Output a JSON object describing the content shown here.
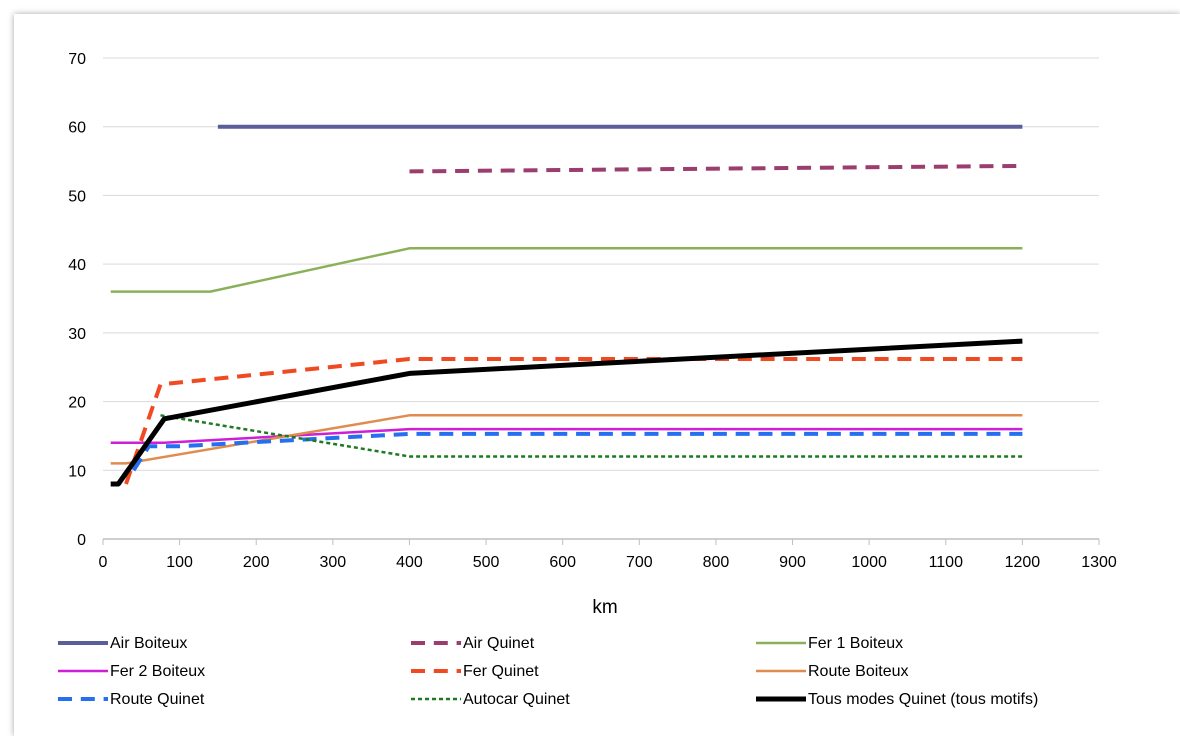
{
  "chart_data": {
    "type": "line",
    "title": "",
    "xlabel": "km",
    "ylabel": "",
    "xlim": [
      0,
      1300
    ],
    "ylim": [
      0,
      70
    ],
    "xticks": [
      0,
      100,
      200,
      300,
      400,
      500,
      600,
      700,
      800,
      900,
      1000,
      1100,
      1200,
      1300
    ],
    "yticks": [
      0,
      10,
      20,
      30,
      40,
      50,
      60,
      70
    ],
    "grid": "horizontal",
    "legend_position": "bottom",
    "series": [
      {
        "name": "Air Boiteux",
        "color": "#5a5f9a",
        "style": "solid",
        "width": 4,
        "points": [
          [
            150,
            60
          ],
          [
            1200,
            60
          ]
        ]
      },
      {
        "name": "Air Quinet",
        "color": "#9b3d6e",
        "style": "dash",
        "width": 4,
        "points": [
          [
            400,
            53.5
          ],
          [
            1200,
            54.3
          ]
        ]
      },
      {
        "name": "Fer 1  Boiteux",
        "color": "#8bb05a",
        "style": "solid",
        "width": 2.5,
        "points": [
          [
            10,
            36
          ],
          [
            140,
            36
          ],
          [
            400,
            42.3
          ],
          [
            1200,
            42.3
          ]
        ]
      },
      {
        "name": "Fer 2 Boiteux",
        "color": "#cc1fd6",
        "style": "solid",
        "width": 2.5,
        "points": [
          [
            10,
            14
          ],
          [
            80,
            14
          ],
          [
            400,
            16
          ],
          [
            1200,
            16
          ]
        ]
      },
      {
        "name": "Fer Quinet",
        "color": "#f04a22",
        "style": "dash",
        "width": 4,
        "points": [
          [
            30,
            8
          ],
          [
            75,
            22.5
          ],
          [
            400,
            26.2
          ],
          [
            1200,
            26.2
          ]
        ]
      },
      {
        "name": "Route Boiteux",
        "color": "#e08c4e",
        "style": "solid",
        "width": 2.5,
        "points": [
          [
            10,
            11
          ],
          [
            30,
            11
          ],
          [
            400,
            18
          ],
          [
            1200,
            18
          ]
        ]
      },
      {
        "name": "Route Quinet",
        "color": "#2670f0",
        "style": "dash",
        "width": 4,
        "points": [
          [
            40,
            10
          ],
          [
            60,
            13.5
          ],
          [
            100,
            13.5
          ],
          [
            400,
            15.3
          ],
          [
            1200,
            15.3
          ]
        ]
      },
      {
        "name": "Autocar Quinet",
        "color": "#1c7a20",
        "style": "dot",
        "width": 2.5,
        "points": [
          [
            75,
            18
          ],
          [
            400,
            12
          ],
          [
            1200,
            12
          ]
        ]
      },
      {
        "name": "Tous modes Quinet (tous motifs)",
        "color": "#000000",
        "style": "solid",
        "width": 5,
        "points": [
          [
            10,
            8
          ],
          [
            20,
            8
          ],
          [
            80,
            17.5
          ],
          [
            400,
            24.1
          ],
          [
            1200,
            28.8
          ]
        ]
      }
    ]
  }
}
